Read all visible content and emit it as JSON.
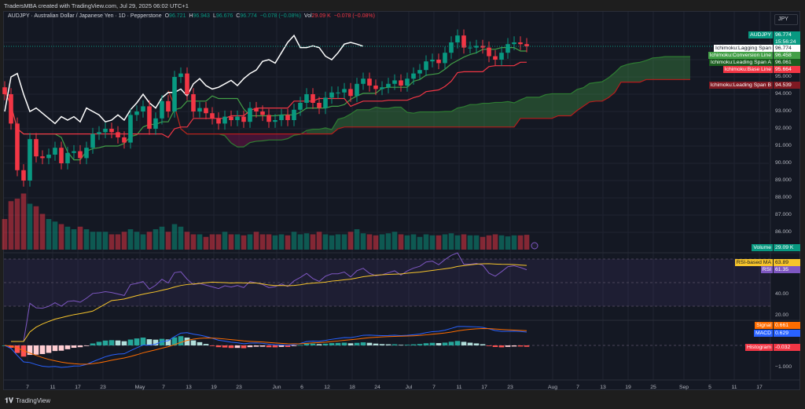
{
  "watermark": "TradersMBA created with TradingView.com, Jul 29, 2025 06:02 UTC+1",
  "legend": {
    "symbol": "AUDJPY · Australian Dollar / Japanese Yen · 1D · Pepperstone",
    "o_label": "O",
    "o": "96.721",
    "h_label": "H",
    "h": "96.943",
    "l_label": "L",
    "l": "96.676",
    "c_label": "C",
    "c": "96.774",
    "change": "−0.078 (−0.08%)",
    "vol_label": "Vol",
    "vol": "29.09 K",
    "vol_change": "−0.078 (−0.08%)"
  },
  "currency_button": "JPY",
  "price_tags": [
    {
      "name": "AUDJPY",
      "value": "96.774",
      "extra": "15:56:24",
      "color": "#089981"
    },
    {
      "name": "Ichimoku:Lagging Span",
      "value": "96.774",
      "color": "#ffffff"
    },
    {
      "name": "Ichimoku:Conversion Line",
      "value": "96.458",
      "color": "#43a047"
    },
    {
      "name": "Ichimoku:Leading Span A",
      "value": "96.061",
      "color": "#1b5e20"
    },
    {
      "name": "Ichimoku:Base Line",
      "value": "95.664",
      "color": "#f23645"
    },
    {
      "name": "Ichimoku:Leading Span B",
      "value": "94.539",
      "color": "#801922"
    }
  ],
  "volume_tag": {
    "name": "Volume",
    "value": "29.09 K"
  },
  "rsi_tags": [
    {
      "name": "RSI-based MA",
      "value": "63.89",
      "color": "#f7c52b"
    },
    {
      "name": "RSI",
      "value": "61.35",
      "color": "#7e57c2"
    }
  ],
  "macd_tags": [
    {
      "name": "Signal",
      "value": "0.661",
      "color": "#ff6d00"
    },
    {
      "name": "MACD",
      "value": "0.629",
      "color": "#2962ff"
    },
    {
      "name": "Histogram",
      "value": "-0.032",
      "color": "#f23645"
    }
  ],
  "price_axis": [
    "95.000",
    "94.000",
    "93.000",
    "92.000",
    "91.000",
    "90.000",
    "89.000",
    "88.000",
    "87.000",
    "86.000"
  ],
  "rsi_axis": [
    "40.00",
    "20.00"
  ],
  "macd_axis": [
    "−1.000"
  ],
  "time_axis": [
    "7",
    "11",
    "17",
    "23",
    "May",
    "7",
    "13",
    "19",
    "23",
    "Jun",
    "6",
    "12",
    "18",
    "24",
    "Jul",
    "7",
    "11",
    "17",
    "23",
    "Aug",
    "7",
    "13",
    "19",
    "25",
    "Sep",
    "5",
    "11",
    "17"
  ],
  "footer": "TradingView",
  "colors": {
    "up": "#089981",
    "down": "#f23645",
    "background": "#141823"
  },
  "chart_data": {
    "type": "candlestick",
    "symbol": "AUDJPY",
    "timeframe": "1D",
    "closes": [
      94.0,
      92.3,
      89.6,
      89.0,
      91.4,
      90.4,
      90.3,
      90.5,
      90.9,
      90.0,
      90.6,
      90.7,
      90.3,
      90.9,
      91.7,
      91.8,
      92.0,
      91.8,
      91.5,
      91.2,
      92.8,
      93.0,
      93.3,
      92.0,
      92.6,
      93.6,
      93.0,
      95.0,
      95.2,
      94.0,
      93.0,
      93.2,
      92.9,
      92.6,
      92.3,
      92.7,
      92.5,
      92.7,
      92.4,
      93.2,
      93.0,
      92.8,
      92.4,
      92.5,
      92.8,
      92.5,
      93.1,
      93.5,
      94.0,
      93.5,
      93.2,
      93.8,
      94.1,
      94.1,
      94.3,
      93.9,
      94.6,
      94.9,
      94.5,
      94.3,
      94.4,
      94.6,
      94.8,
      94.5,
      94.9,
      95.2,
      95.4,
      95.9,
      96.0,
      95.8,
      96.4,
      97.0,
      97.4,
      96.7,
      96.7,
      96.8,
      96.7,
      96.2,
      96.0,
      96.4,
      96.9,
      97.0,
      96.9,
      96.774
    ],
    "volumes_k": [
      60,
      95,
      100,
      110,
      90,
      85,
      70,
      60,
      55,
      50,
      45,
      40,
      45,
      40,
      35,
      35,
      35,
      30,
      30,
      35,
      40,
      35,
      30,
      35,
      40,
      45,
      35,
      50,
      45,
      35,
      30,
      30,
      25,
      30,
      30,
      35,
      30,
      30,
      28,
      30,
      35,
      30,
      30,
      28,
      30,
      28,
      35,
      30,
      32,
      30,
      35,
      30,
      28,
      30,
      30,
      35,
      40,
      32,
      30,
      28,
      30,
      32,
      35,
      30,
      28,
      30,
      25,
      30,
      28,
      28,
      30,
      32,
      28,
      30,
      28,
      28,
      25,
      28,
      30,
      28,
      26,
      28,
      28,
      29.09
    ],
    "indicators": [
      "Ichimoku Cloud",
      "Volume",
      "RSI 14 with MA",
      "MACD 12 26 9"
    ],
    "price_range": [
      85.5,
      97.5
    ],
    "rsi_levels": [
      70,
      30
    ],
    "grid": true
  }
}
